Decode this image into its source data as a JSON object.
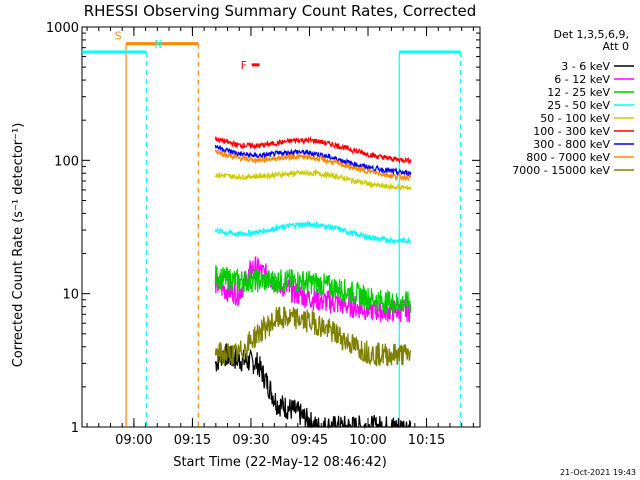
{
  "chart_data": {
    "type": "line",
    "title": "RHESSI Observing Summary Count Rates, Corrected",
    "xlabel": "Start Time (22-May-12 08:46:42)",
    "ylabel": "Corrected Count Rate (s⁻¹ detector⁻¹)",
    "y_scale": "log",
    "ylim": [
      1,
      1000
    ],
    "y_ticks": [
      {
        "value": 1,
        "label": "1"
      },
      {
        "value": 10,
        "label": "10"
      },
      {
        "value": 100,
        "label": "100"
      },
      {
        "value": 1000,
        "label": "1000"
      }
    ],
    "xlim_minutes": [
      0,
      102
    ],
    "x_ticks": [
      {
        "value": 13.3,
        "label": "09:00"
      },
      {
        "value": 28.3,
        "label": "09:15"
      },
      {
        "value": 43.3,
        "label": "09:30"
      },
      {
        "value": 58.3,
        "label": "09:45"
      },
      {
        "value": 73.3,
        "label": "10:00"
      },
      {
        "value": 88.3,
        "label": "10:15"
      }
    ],
    "legend_header": [
      "Det 1,3,5,6,9,",
      "Att 0"
    ],
    "legend_position": "right",
    "series": [
      {
        "name": "3 - 6 keV",
        "color": "#000000"
      },
      {
        "name": "6 - 12 keV",
        "color": "#ff00ff"
      },
      {
        "name": "12 - 25 keV",
        "color": "#00cc00"
      },
      {
        "name": "25 - 50 keV",
        "color": "#00ffff"
      },
      {
        "name": "50 - 100 keV",
        "color": "#cccc00"
      },
      {
        "name": "100 - 300 keV",
        "color": "#ff0000"
      },
      {
        "name": "300 - 800 keV",
        "color": "#0000ff"
      },
      {
        "name": "800 - 7000 keV",
        "color": "#ff8800"
      },
      {
        "name": "7000 - 15000 keV",
        "color": "#808000"
      }
    ],
    "data_window_minutes": [
      34.2,
      84.3
    ],
    "series_data": [
      {
        "name": "3 - 6 keV",
        "t": [
          34.2,
          36,
          40,
          45,
          50,
          55,
          60,
          65,
          70,
          75,
          80,
          84.3
        ],
        "y": [
          3.0,
          3.5,
          3.2,
          3.0,
          1.5,
          1.3,
          1.0,
          1.0,
          1.0,
          1.0,
          1.0,
          1.0
        ]
      },
      {
        "name": "6 - 12 keV",
        "t": [
          34.2,
          36,
          40,
          44,
          50,
          55,
          60,
          65,
          70,
          75,
          80,
          84.3
        ],
        "y": [
          12,
          11,
          10,
          16,
          12,
          10,
          9,
          8.5,
          8,
          7.5,
          7.5,
          7.5
        ]
      },
      {
        "name": "12 - 25 keV",
        "t": [
          34.2,
          36,
          40,
          45,
          50,
          55,
          60,
          65,
          70,
          75,
          80,
          84.3
        ],
        "y": [
          13.5,
          13,
          12.5,
          12.5,
          12.5,
          12.5,
          12,
          11,
          10,
          9,
          8.5,
          8.5
        ]
      },
      {
        "name": "25 - 50 keV",
        "t": [
          34.2,
          36,
          40,
          45,
          50,
          55,
          60,
          65,
          70,
          75,
          80,
          84.3
        ],
        "y": [
          30,
          29,
          28,
          29,
          31,
          33,
          33,
          31,
          28,
          26,
          25,
          25
        ]
      },
      {
        "name": "50 - 100 keV",
        "t": [
          34.2,
          36,
          40,
          45,
          50,
          55,
          60,
          65,
          70,
          75,
          80,
          84.3
        ],
        "y": [
          78,
          77,
          75,
          76,
          78,
          80,
          80,
          76,
          70,
          65,
          63,
          62
        ]
      },
      {
        "name": "100 - 300 keV",
        "t": [
          34.2,
          36,
          40,
          45,
          50,
          55,
          60,
          65,
          70,
          75,
          80,
          84.3
        ],
        "y": [
          145,
          140,
          130,
          128,
          135,
          142,
          140,
          130,
          118,
          108,
          102,
          100
        ]
      },
      {
        "name": "300 - 800 keV",
        "t": [
          34.2,
          36,
          40,
          45,
          50,
          55,
          60,
          65,
          70,
          75,
          80,
          84.3
        ],
        "y": [
          128,
          122,
          112,
          108,
          112,
          116,
          112,
          103,
          93,
          87,
          82,
          80
        ]
      },
      {
        "name": "800 - 7000 keV",
        "t": [
          34.2,
          36,
          40,
          45,
          50,
          55,
          60,
          65,
          70,
          75,
          80,
          84.3
        ],
        "y": [
          118,
          112,
          104,
          100,
          104,
          107,
          104,
          96,
          87,
          81,
          76,
          74
        ]
      },
      {
        "name": "7000 - 15000 keV",
        "t": [
          34.2,
          36,
          40,
          45,
          50,
          55,
          60,
          65,
          70,
          75,
          80,
          84.3
        ],
        "y": [
          3.5,
          3.5,
          3.5,
          5,
          6.5,
          6.5,
          6,
          5,
          4,
          3.5,
          3.5,
          3.5
        ]
      }
    ],
    "flags": [
      {
        "label": "S",
        "color": "#ff8800",
        "level": 750,
        "start": 11.3,
        "end": 29.8,
        "vline_start": true,
        "vline_end": true,
        "dashed_end": true
      },
      {
        "label": "N",
        "color": "#00ffff",
        "level": 650,
        "start": 0,
        "end": 16.5,
        "vline_end": true,
        "dashed_end": true,
        "start2": 81.3,
        "end2": 97,
        "vline_start2": true,
        "dashed_end2": true
      },
      {
        "label": "F",
        "color": "#ff0000",
        "level": 520,
        "start": 43.5,
        "end": 45.5
      }
    ],
    "timestamp": "21-Oct-2021 19:43"
  }
}
